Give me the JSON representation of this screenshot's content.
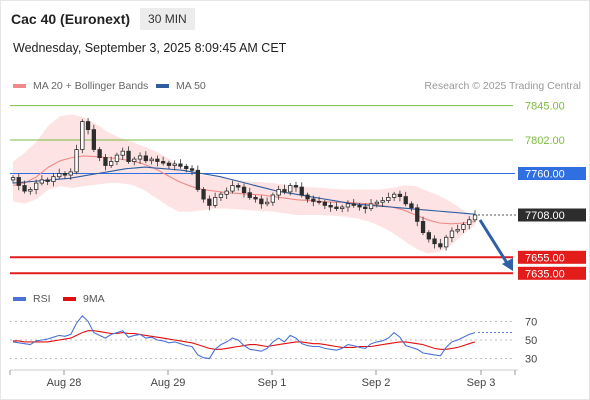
{
  "header": {
    "instrument": "Cac 40 (Euronext)",
    "interval": "30 MIN"
  },
  "datetime": "Wednesday, September 3, 2025 8:09:45 AM CET",
  "legend": {
    "items": [
      {
        "label": "MA 20 + Bollinger Bands",
        "color": "#f08a8a"
      },
      {
        "label": "MA 50",
        "color": "#2f5d9e"
      }
    ],
    "credit": "Research © 2025 Trading Central"
  },
  "indicator_legend": {
    "items": [
      {
        "label": "RSI",
        "color": "#4b72d6"
      },
      {
        "label": "9MA",
        "color": "#e01010"
      }
    ]
  },
  "chart_data": {
    "type": "candlestick",
    "price_levels": [
      {
        "label": "7845.00",
        "value": 7845,
        "kind": "resistance",
        "color": "#7dbb3e"
      },
      {
        "label": "7802.00",
        "value": 7802,
        "kind": "resistance",
        "color": "#7dbb3e"
      },
      {
        "label": "7760.00",
        "value": 7760,
        "kind": "pivot",
        "color": "#2f6fe0"
      },
      {
        "label": "7708.00",
        "value": 7708,
        "kind": "last",
        "color": "#2d2d2d"
      },
      {
        "label": "7655.00",
        "value": 7655,
        "kind": "support",
        "color": "#e21b1b"
      },
      {
        "label": "7635.00",
        "value": 7635,
        "kind": "support",
        "color": "#e21b1b"
      }
    ],
    "x_tick_labels": [
      "Aug 28",
      "Aug 29",
      "Sep 1",
      "Sep 2",
      "Sep 3"
    ],
    "rsi_levels": [
      "70",
      "50",
      "30"
    ],
    "closes": [
      7755,
      7745,
      7738,
      7740,
      7748,
      7752,
      7750,
      7756,
      7760,
      7758,
      7762,
      7790,
      7825,
      7815,
      7790,
      7780,
      7770,
      7775,
      7783,
      7788,
      7775,
      7778,
      7782,
      7776,
      7778,
      7775,
      7773,
      7770,
      7772,
      7769,
      7766,
      7764,
      7740,
      7728,
      7720,
      7730,
      7734,
      7738,
      7745,
      7743,
      7736,
      7730,
      7728,
      7722,
      7724,
      7733,
      7740,
      7737,
      7745,
      7743,
      7733,
      7728,
      7725,
      7724,
      7720,
      7718,
      7716,
      7718,
      7722,
      7720,
      7718,
      7716,
      7722,
      7724,
      7726,
      7730,
      7734,
      7731,
      7722,
      7717,
      7700,
      7686,
      7678,
      7672,
      7668,
      7680,
      7688,
      7690,
      7696,
      7702,
      7708
    ],
    "ma50": [
      7748,
      7749,
      7750,
      7751,
      7752,
      7753,
      7754,
      7756,
      7758,
      7760,
      7762,
      7764,
      7766,
      7767,
      7768,
      7767,
      7766,
      7765,
      7764,
      7762,
      7760,
      7758,
      7756,
      7753,
      7750,
      7747,
      7744,
      7741,
      7738,
      7736,
      7734,
      7732,
      7730,
      7728,
      7726,
      7724,
      7722,
      7721,
      7720,
      7719,
      7718,
      7717,
      7716,
      7715,
      7714,
      7713,
      7712,
      7711,
      7710,
      7709
    ],
    "ma20": [
      7745,
      7748,
      7756,
      7768,
      7776,
      7780,
      7782,
      7781,
      7780,
      7778,
      7776,
      7772,
      7766,
      7758,
      7750,
      7744,
      7740,
      7738,
      7736,
      7735,
      7734,
      7733,
      7731,
      7729,
      7727,
      7726,
      7725,
      7724,
      7724,
      7723,
      7722,
      7720,
      7718,
      7714,
      7708,
      7702,
      7698,
      7697,
      7698,
      7700
    ],
    "bb_upper": [
      7775,
      7786,
      7800,
      7820,
      7832,
      7834,
      7830,
      7822,
      7812,
      7805,
      7800,
      7794,
      7788,
      7780,
      7770,
      7762,
      7758,
      7756,
      7754,
      7752,
      7750,
      7749,
      7748,
      7746,
      7744,
      7743,
      7742,
      7741,
      7740,
      7740,
      7740,
      7740,
      7742,
      7745,
      7744,
      7738,
      7732,
      7724,
      7714,
      7705
    ],
    "bb_lower": [
      7725,
      7722,
      7728,
      7740,
      7744,
      7742,
      7744,
      7746,
      7748,
      7748,
      7746,
      7740,
      7730,
      7720,
      7712,
      7712,
      7714,
      7716,
      7716,
      7715,
      7714,
      7713,
      7712,
      7710,
      7708,
      7708,
      7708,
      7707,
      7706,
      7704,
      7700,
      7694,
      7686,
      7676,
      7666,
      7660,
      7662,
      7670,
      7684,
      7695
    ],
    "rsi": [
      48,
      47,
      46,
      45,
      49,
      50,
      51,
      53,
      55,
      54,
      56,
      68,
      76,
      70,
      58,
      55,
      52,
      56,
      58,
      60,
      53,
      55,
      56,
      52,
      53,
      50,
      49,
      47,
      48,
      46,
      44,
      43,
      34,
      31,
      30,
      40,
      45,
      48,
      52,
      50,
      44,
      40,
      39,
      38,
      41,
      48,
      52,
      48,
      55,
      52,
      46,
      44,
      43,
      43,
      41,
      40,
      39,
      41,
      45,
      44,
      42,
      41,
      46,
      48,
      49,
      52,
      58,
      53,
      44,
      42,
      40,
      36,
      35,
      34,
      33,
      42,
      48,
      50,
      53,
      56,
      58
    ],
    "rsi_ma": [
      49,
      49,
      48,
      48,
      48,
      48,
      48,
      49,
      50,
      51,
      52,
      55,
      58,
      60,
      60,
      59,
      58,
      57,
      57,
      58,
      57,
      57,
      56,
      55,
      54,
      53,
      52,
      51,
      50,
      49,
      48,
      47,
      45,
      43,
      41,
      40,
      40,
      41,
      42,
      43,
      44,
      45,
      45,
      44,
      43,
      44,
      45,
      46,
      47,
      48,
      48,
      47,
      46,
      46,
      45,
      44,
      43,
      42,
      42,
      42,
      43,
      43,
      43,
      44,
      45,
      46,
      47,
      48,
      48,
      47,
      46,
      45,
      43,
      41,
      40,
      40,
      41,
      42,
      44,
      46,
      48
    ]
  }
}
